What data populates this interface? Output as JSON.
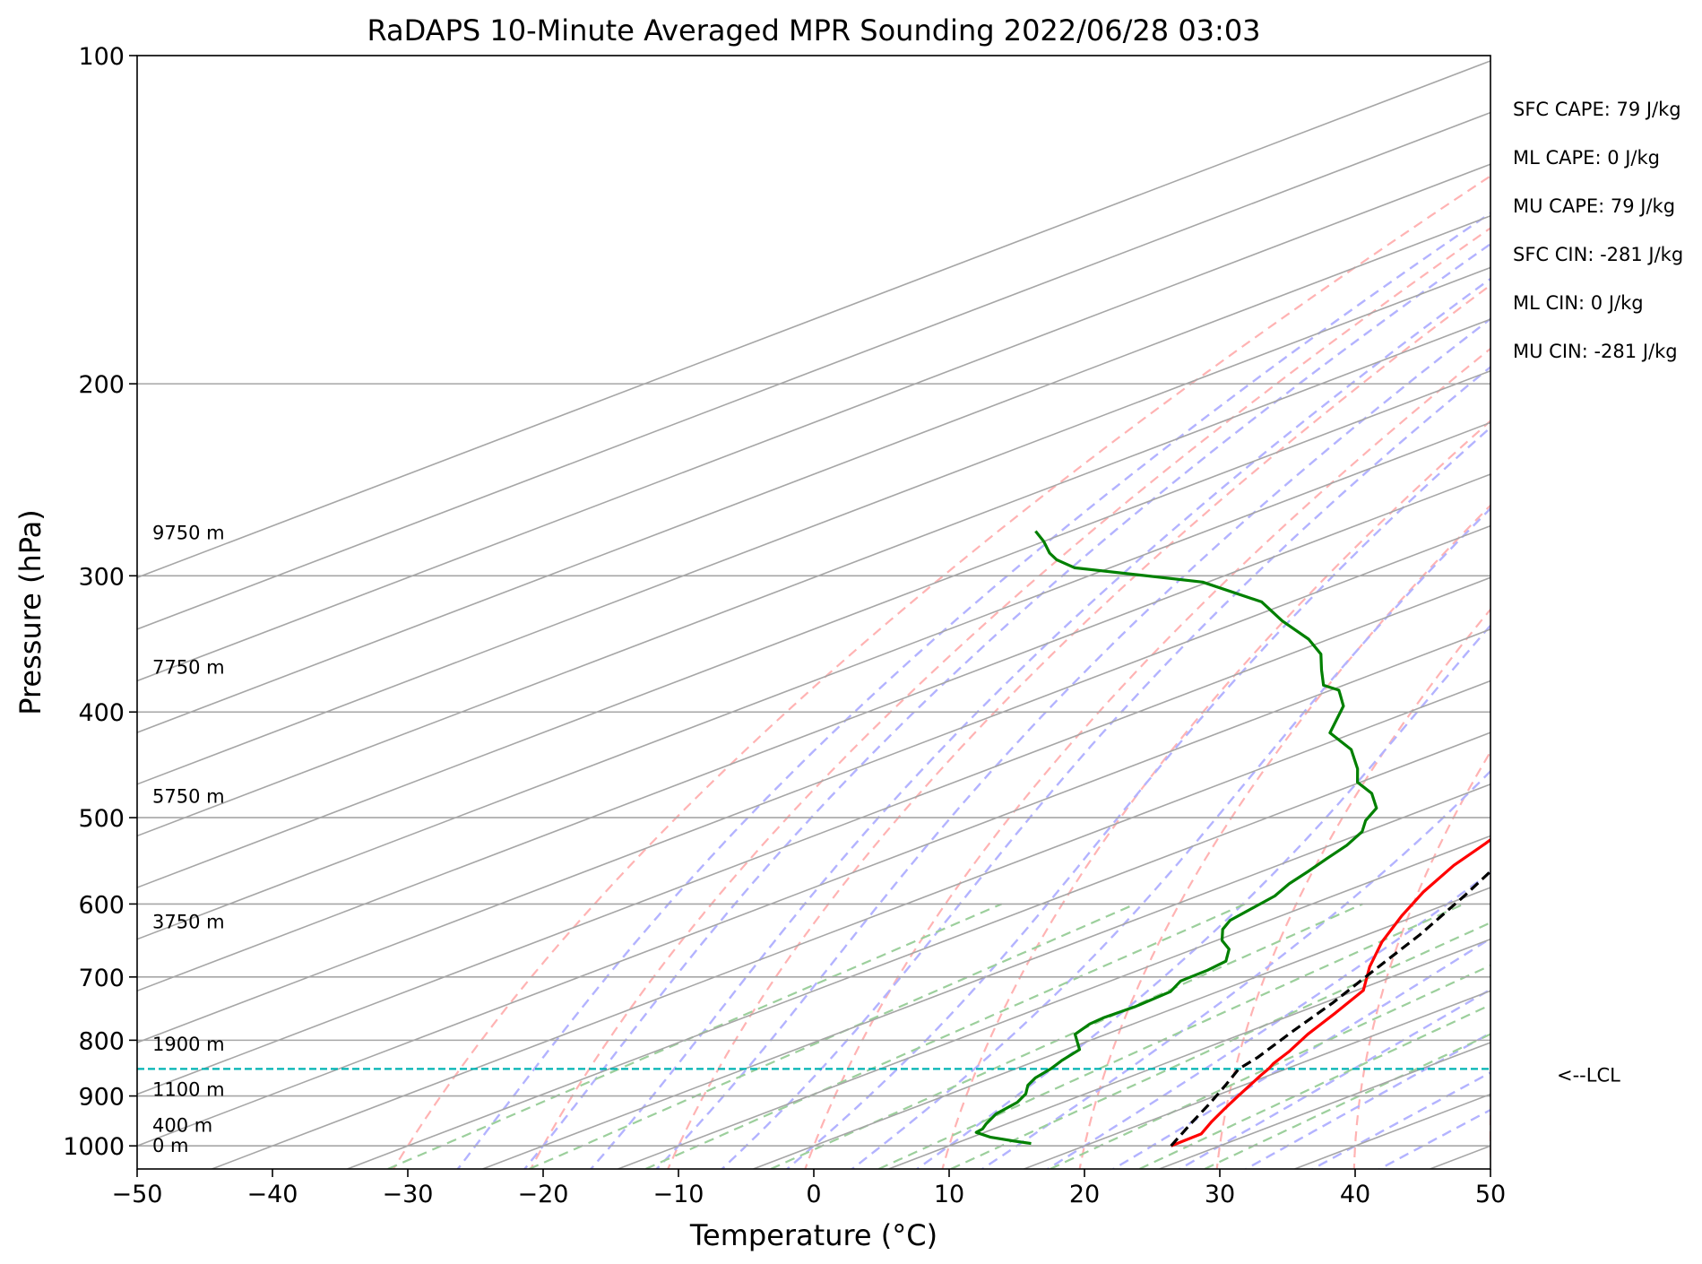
{
  "chart_data": {
    "type": "line",
    "subtype": "skew-t log-p sounding",
    "title": "RaDAPS 10-Minute Averaged MPR Sounding 2022/06/28 03:03",
    "xlabel": "Temperature (°C)",
    "ylabel": "Pressure (hPa)",
    "xlim": [
      -50,
      50
    ],
    "ylim": [
      1050,
      100
    ],
    "y_scale": "log",
    "x_ticks": [
      -50,
      -40,
      -30,
      -20,
      -10,
      0,
      10,
      20,
      30,
      40,
      50
    ],
    "x_tick_labels": [
      "−50",
      "−40",
      "−30",
      "−20",
      "−10",
      "0",
      "10",
      "20",
      "30",
      "40",
      "50"
    ],
    "y_ticks": [
      1000,
      900,
      800,
      700,
      600,
      500,
      400,
      300,
      200,
      100
    ],
    "y_tick_labels": [
      "1000",
      "900",
      "800",
      "700",
      "600",
      "500",
      "400",
      "300",
      "200",
      "100"
    ],
    "grid": true,
    "series": [
      {
        "key": "temperature",
        "color": "#ff0000",
        "style": "solid",
        "points": [
          [
            26.4,
            1000
          ],
          [
            26.3,
            975
          ],
          [
            24.7,
            950
          ],
          [
            23.2,
            925
          ],
          [
            21.7,
            900
          ],
          [
            20.5,
            880
          ],
          [
            19.4,
            862
          ],
          [
            18.7,
            850
          ],
          [
            18.0,
            840
          ],
          [
            16.9,
            820
          ],
          [
            14.9,
            790
          ],
          [
            12.8,
            755
          ],
          [
            10.5,
            720
          ],
          [
            6.4,
            685
          ],
          [
            2.5,
            650
          ],
          [
            -1.1,
            615
          ],
          [
            -4.1,
            585
          ],
          [
            -7.0,
            553
          ],
          [
            -8.9,
            528
          ],
          [
            -11.3,
            500
          ],
          [
            -13.3,
            478
          ],
          [
            -16.2,
            450
          ],
          [
            -19.7,
            420
          ],
          [
            -23.2,
            390
          ],
          [
            -29.1,
            355
          ],
          [
            -34.6,
            325
          ],
          [
            -39.6,
            300
          ],
          [
            -43.3,
            284
          ],
          [
            -45.4,
            275
          ]
        ]
      },
      {
        "key": "dewpoint",
        "color": "#008000",
        "style": "solid",
        "points": [
          [
            15.6,
            995
          ],
          [
            13.9,
            990
          ],
          [
            11.4,
            982
          ],
          [
            9.4,
            972
          ],
          [
            9.2,
            965
          ],
          [
            8.5,
            955
          ],
          [
            7.3,
            935
          ],
          [
            6.6,
            912
          ],
          [
            5.6,
            896
          ],
          [
            4.1,
            880
          ],
          [
            3.2,
            866
          ],
          [
            2.6,
            850
          ],
          [
            1.8,
            835
          ],
          [
            1.0,
            816
          ],
          [
            -2.3,
            790
          ],
          [
            -3.2,
            773
          ],
          [
            -3.4,
            763
          ],
          [
            -3.3,
            755
          ],
          [
            -3.2,
            745
          ],
          [
            -3.5,
            722
          ],
          [
            -4.8,
            706
          ],
          [
            -4.9,
            690
          ],
          [
            -5.3,
            677
          ],
          [
            -7.4,
            660
          ],
          [
            -9.6,
            648
          ],
          [
            -11.7,
            633
          ],
          [
            -12.9,
            621
          ],
          [
            -13.7,
            603
          ],
          [
            -14.3,
            590
          ],
          [
            -15.6,
            575
          ],
          [
            -16.6,
            560
          ],
          [
            -17.7,
            545
          ],
          [
            -18.8,
            530
          ],
          [
            -20.3,
            515
          ],
          [
            -22.2,
            503
          ],
          [
            -23.8,
            490
          ],
          [
            -27.0,
            475
          ],
          [
            -30.2,
            464
          ],
          [
            -32.8,
            451
          ],
          [
            -37.0,
            433
          ],
          [
            -41.8,
            418
          ],
          [
            -46.0,
            395
          ],
          [
            -48.6,
            385
          ],
          [
            -49.4,
            382
          ],
          [
            -51.5,
            378
          ],
          [
            -54.6,
            366
          ],
          [
            -57.7,
            354
          ],
          [
            -61.5,
            343
          ],
          [
            -67.0,
            330
          ],
          [
            -72.2,
            317
          ],
          [
            -80.4,
            304
          ],
          [
            -92.6,
            295
          ],
          [
            -95.5,
            290
          ],
          [
            -97.3,
            286
          ],
          [
            -100.0,
            279
          ],
          [
            -102.6,
            273
          ]
        ]
      },
      {
        "key": "parcel",
        "color": "#000000",
        "style": "dashed",
        "points": [
          [
            26.4,
            1000
          ],
          [
            23.3,
            950
          ],
          [
            21.1,
            915
          ],
          [
            18.7,
            880
          ],
          [
            16.5,
            850
          ],
          [
            15.7,
            830
          ],
          [
            13.2,
            785
          ],
          [
            10.7,
            740
          ],
          [
            7.4,
            690
          ],
          [
            3.9,
            640
          ],
          [
            -0.3,
            590
          ],
          [
            -5.1,
            540
          ],
          [
            -10.4,
            490
          ],
          [
            -16.6,
            440
          ],
          [
            -23.9,
            390
          ],
          [
            -32.6,
            340
          ],
          [
            -43.5,
            290
          ],
          [
            -47.3,
            275
          ]
        ]
      }
    ],
    "lcl": {
      "pressure": 850,
      "label": "<--LCL",
      "color": "#00b3b3"
    },
    "height_labels": [
      {
        "pressure": 1000,
        "text": "0 m"
      },
      {
        "pressure": 958,
        "text": "400 m"
      },
      {
        "pressure": 888,
        "text": "1100 m"
      },
      {
        "pressure": 807,
        "text": "1900 m"
      },
      {
        "pressure": 623,
        "text": "3750 m"
      },
      {
        "pressure": 478,
        "text": "5750 m"
      },
      {
        "pressure": 364,
        "text": "7750 m"
      },
      {
        "pressure": 274,
        "text": "9750 m"
      }
    ],
    "indices": [
      {
        "label": "SFC CAPE: 79 J/kg"
      },
      {
        "label": "ML CAPE: 0 J/kg"
      },
      {
        "label": "MU CAPE: 79 J/kg"
      },
      {
        "label": "SFC CIN: -281 J/kg"
      },
      {
        "label": "ML CIN: 0 J/kg"
      },
      {
        "label": "MU CIN: -281 J/kg"
      }
    ],
    "background_lines": {
      "isotherm_color": "#a6a6a6",
      "dry_adiabat_color": "#ffb3b3",
      "moist_adiabat_color": "#b3b3ff",
      "mixing_ratio_color": "#9ccf9c"
    }
  }
}
